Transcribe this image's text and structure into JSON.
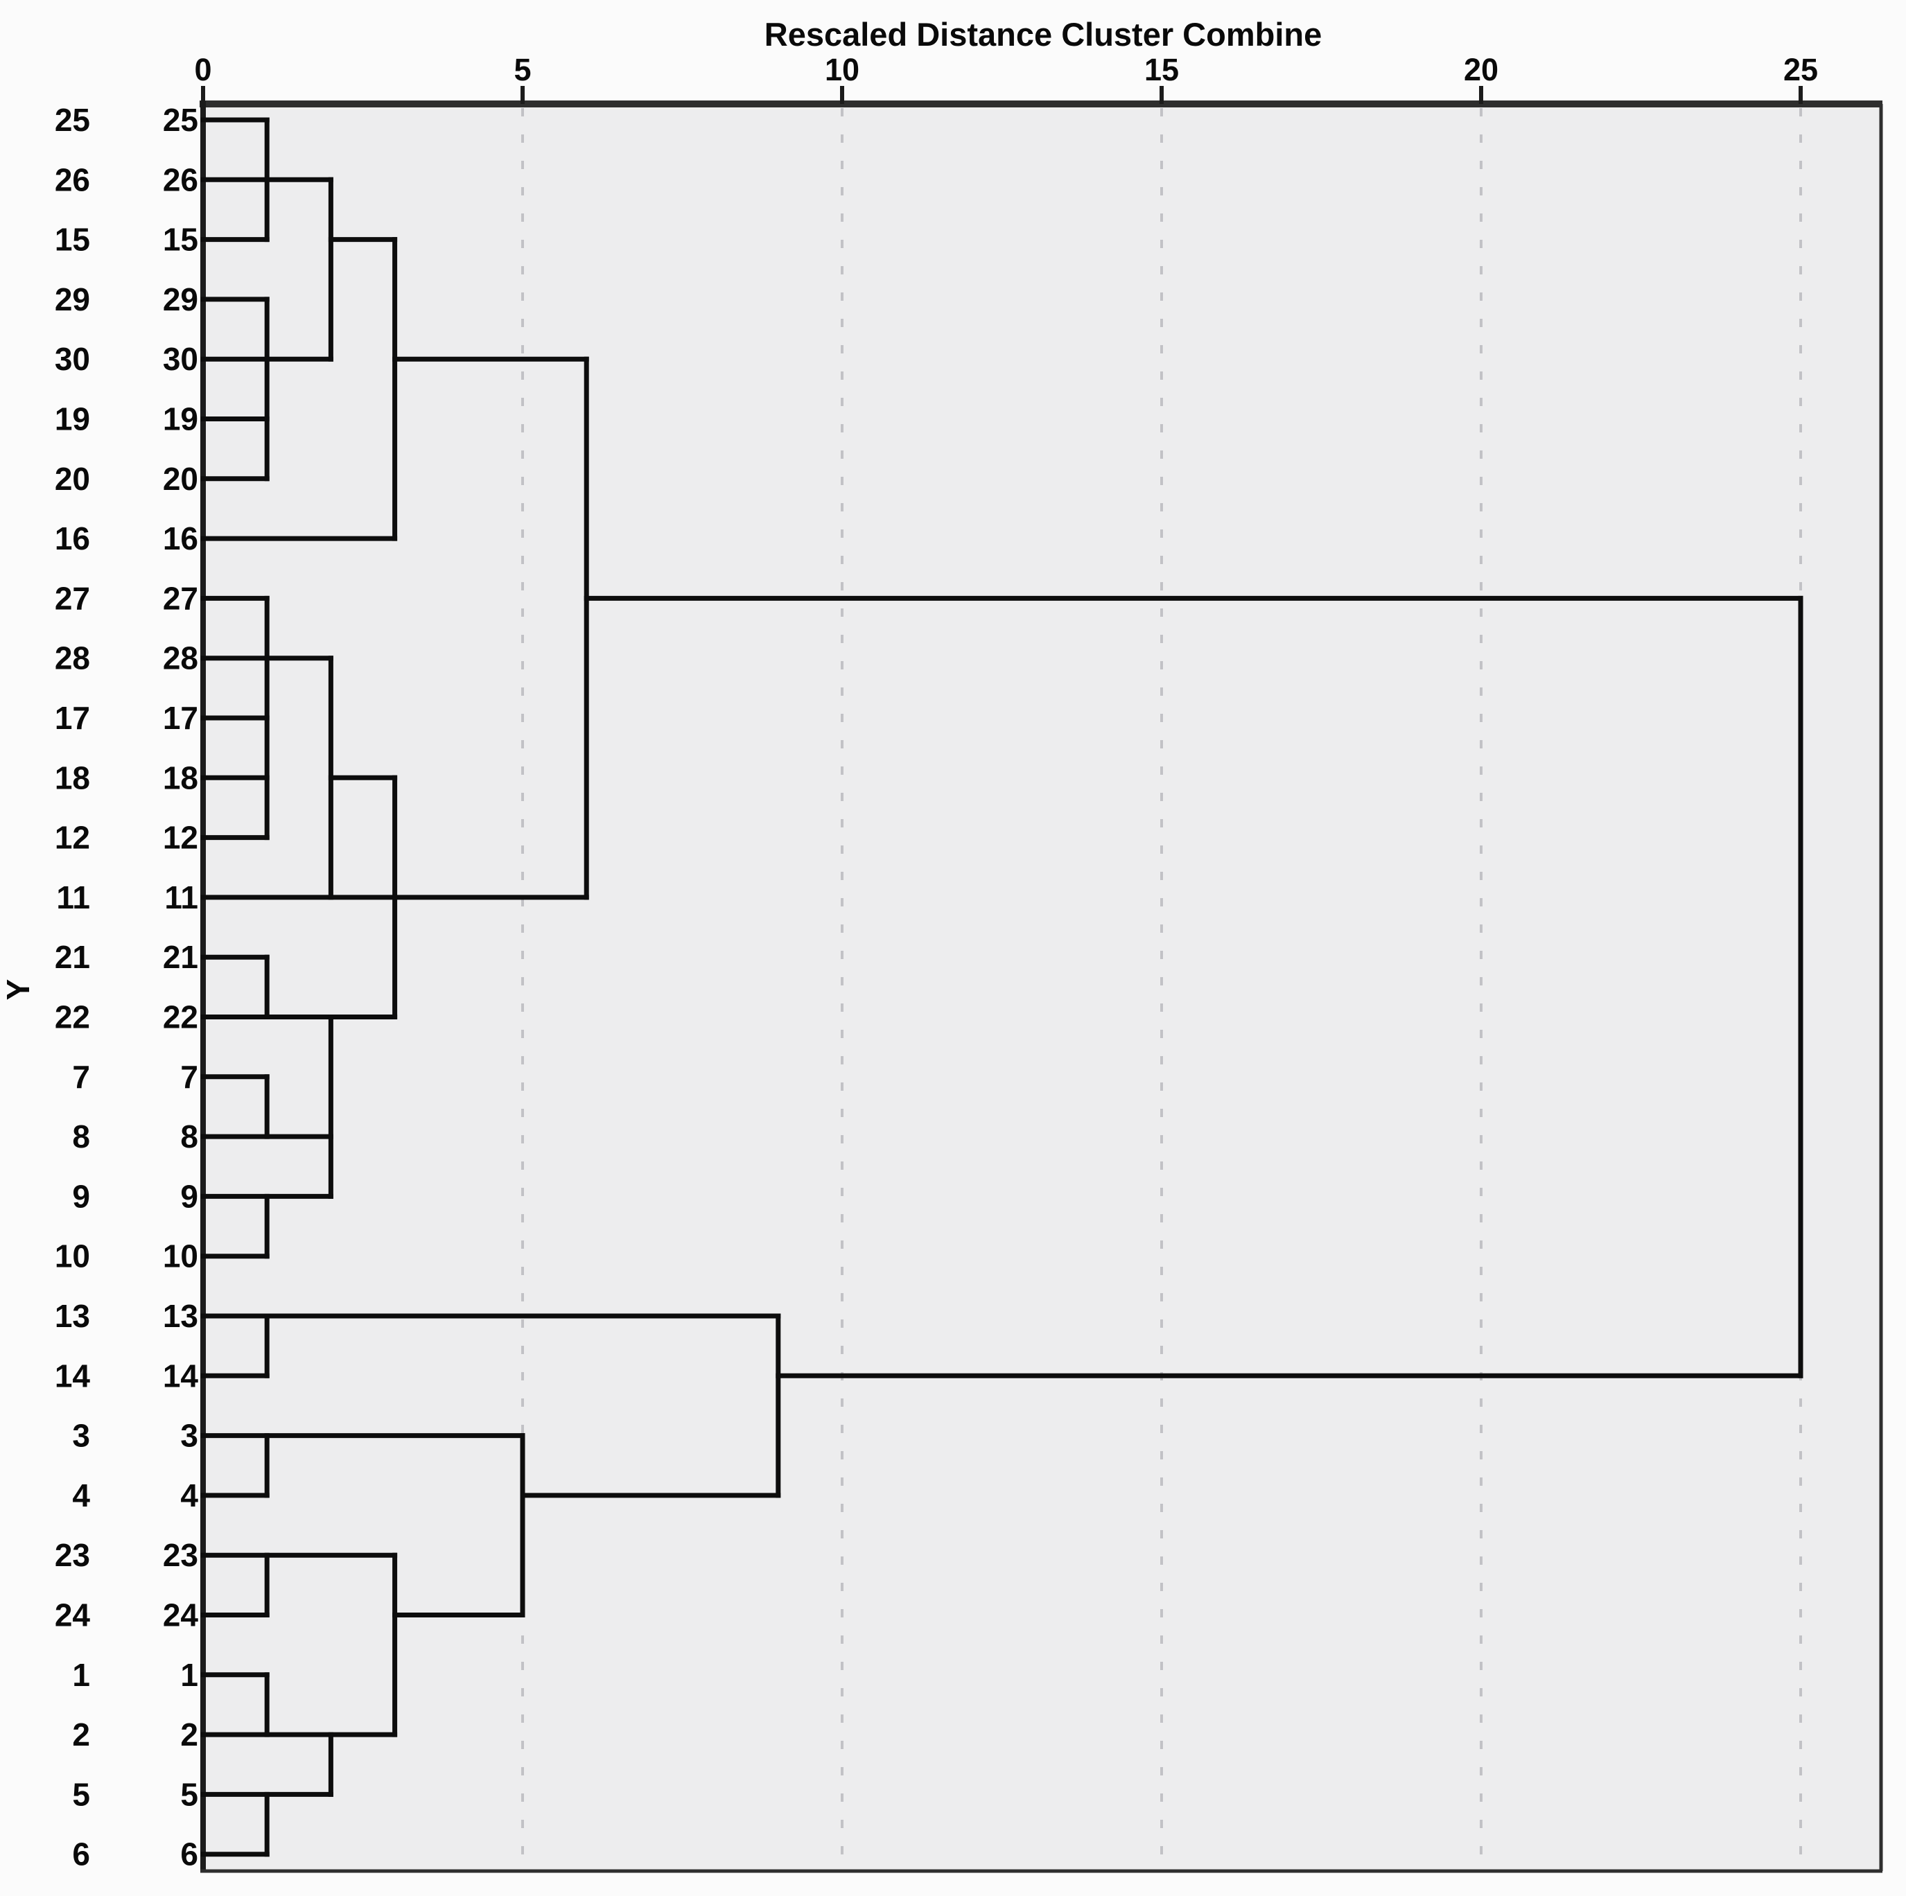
{
  "title": "Rescaled Distance Cluster Combine",
  "y_axis_label": "Y",
  "colors": {
    "page_bg": "#fbfbfb",
    "plot_bg": "#ededee",
    "dendrogram_line": "#0d0d0d",
    "frame": "#2e2e2e",
    "grid": "#c2c2c6",
    "text": "#0a0a0a"
  },
  "chart_data": {
    "type": "dendrogram",
    "orientation": "horizontal",
    "title": "Rescaled Distance Cluster Combine",
    "xlabel": "Rescaled Distance Cluster Combine",
    "ylabel": "Y",
    "xlim": [
      0,
      25
    ],
    "x_ticks": [
      "0",
      "5",
      "10",
      "15",
      "20",
      "25"
    ],
    "x_tick_values": [
      0,
      5,
      10,
      15,
      20,
      25
    ],
    "grid": "dashed vertical gridlines at 5,10,15,20,25",
    "legend": "none",
    "label_columns": 2,
    "leaf_labels_top_to_bottom": [
      "25",
      "26",
      "15",
      "29",
      "30",
      "19",
      "20",
      "16",
      "27",
      "28",
      "17",
      "18",
      "12",
      "11",
      "21",
      "22",
      "7",
      "8",
      "9",
      "10",
      "13",
      "14",
      "3",
      "4",
      "23",
      "24",
      "1",
      "2",
      "5",
      "6"
    ],
    "merge_distances_observed": [
      1,
      2,
      3,
      5,
      6,
      9,
      25
    ],
    "horizontal_segments": [
      {
        "row": 1,
        "leaf": "25",
        "from": 0,
        "to": 1
      },
      {
        "row": 2,
        "leaf": "26",
        "from": 0,
        "to": 2
      },
      {
        "row": 3,
        "leaf": "15",
        "from": 0,
        "to": 1
      },
      {
        "row": 3,
        "leaf": "15",
        "from": 2,
        "to": 3
      },
      {
        "row": 4,
        "leaf": "29",
        "from": 0,
        "to": 1
      },
      {
        "row": 5,
        "leaf": "30",
        "from": 0,
        "to": 2
      },
      {
        "row": 5,
        "leaf": "30",
        "from": 3,
        "to": 6
      },
      {
        "row": 6,
        "leaf": "19",
        "from": 0,
        "to": 1
      },
      {
        "row": 7,
        "leaf": "20",
        "from": 0,
        "to": 1
      },
      {
        "row": 8,
        "leaf": "16",
        "from": 0,
        "to": 3
      },
      {
        "row": 9,
        "leaf": "27",
        "from": 0,
        "to": 1
      },
      {
        "row": 9,
        "leaf": "27",
        "from": 6,
        "to": 25
      },
      {
        "row": 10,
        "leaf": "28",
        "from": 0,
        "to": 2
      },
      {
        "row": 11,
        "leaf": "17",
        "from": 0,
        "to": 1
      },
      {
        "row": 12,
        "leaf": "18",
        "from": 0,
        "to": 1
      },
      {
        "row": 12,
        "leaf": "18",
        "from": 2,
        "to": 3
      },
      {
        "row": 13,
        "leaf": "12",
        "from": 0,
        "to": 1
      },
      {
        "row": 14,
        "leaf": "11",
        "from": 0,
        "to": 6
      },
      {
        "row": 15,
        "leaf": "21",
        "from": 0,
        "to": 1
      },
      {
        "row": 16,
        "leaf": "22",
        "from": 0,
        "to": 3
      },
      {
        "row": 17,
        "leaf": "7",
        "from": 0,
        "to": 1
      },
      {
        "row": 18,
        "leaf": "8",
        "from": 0,
        "to": 2
      },
      {
        "row": 19,
        "leaf": "9",
        "from": 0,
        "to": 2
      },
      {
        "row": 20,
        "leaf": "10",
        "from": 0,
        "to": 1
      },
      {
        "row": 21,
        "leaf": "13",
        "from": 0,
        "to": 9
      },
      {
        "row": 22,
        "leaf": "14",
        "from": 0,
        "to": 1
      },
      {
        "row": 22,
        "leaf": "14",
        "from": 9,
        "to": 25
      },
      {
        "row": 23,
        "leaf": "3",
        "from": 0,
        "to": 5
      },
      {
        "row": 24,
        "leaf": "4",
        "from": 0,
        "to": 1
      },
      {
        "row": 24,
        "leaf": "4",
        "from": 5,
        "to": 9
      },
      {
        "row": 25,
        "leaf": "23",
        "from": 0,
        "to": 3
      },
      {
        "row": 26,
        "leaf": "24",
        "from": 0,
        "to": 1
      },
      {
        "row": 26,
        "leaf": "24",
        "from": 3,
        "to": 5
      },
      {
        "row": 27,
        "leaf": "1",
        "from": 0,
        "to": 1
      },
      {
        "row": 28,
        "leaf": "2",
        "from": 0,
        "to": 3
      },
      {
        "row": 29,
        "leaf": "5",
        "from": 0,
        "to": 2
      },
      {
        "row": 30,
        "leaf": "6",
        "from": 0,
        "to": 1
      }
    ],
    "vertical_segments": [
      {
        "d": 1,
        "from_row": 1,
        "to_row": 3
      },
      {
        "d": 2,
        "from_row": 2,
        "to_row": 5
      },
      {
        "d": 3,
        "from_row": 3,
        "to_row": 8
      },
      {
        "d": 1,
        "from_row": 4,
        "to_row": 7
      },
      {
        "d": 1,
        "from_row": 9,
        "to_row": 13
      },
      {
        "d": 2,
        "from_row": 10,
        "to_row": 14
      },
      {
        "d": 3,
        "from_row": 12,
        "to_row": 16
      },
      {
        "d": 1,
        "from_row": 15,
        "to_row": 16
      },
      {
        "d": 2,
        "from_row": 16,
        "to_row": 19
      },
      {
        "d": 1,
        "from_row": 17,
        "to_row": 18
      },
      {
        "d": 1,
        "from_row": 19,
        "to_row": 20
      },
      {
        "d": 6,
        "from_row": 5,
        "to_row": 14
      },
      {
        "d": 1,
        "from_row": 21,
        "to_row": 22
      },
      {
        "d": 9,
        "from_row": 21,
        "to_row": 24
      },
      {
        "d": 1,
        "from_row": 23,
        "to_row": 24
      },
      {
        "d": 5,
        "from_row": 23,
        "to_row": 26
      },
      {
        "d": 1,
        "from_row": 25,
        "to_row": 26
      },
      {
        "d": 3,
        "from_row": 25,
        "to_row": 28
      },
      {
        "d": 1,
        "from_row": 27,
        "to_row": 28
      },
      {
        "d": 2,
        "from_row": 28,
        "to_row": 29
      },
      {
        "d": 1,
        "from_row": 29,
        "to_row": 30
      }
    ],
    "final_merge_vertical": {
      "d": 25,
      "from_row": 9,
      "to_row": 22
    }
  }
}
